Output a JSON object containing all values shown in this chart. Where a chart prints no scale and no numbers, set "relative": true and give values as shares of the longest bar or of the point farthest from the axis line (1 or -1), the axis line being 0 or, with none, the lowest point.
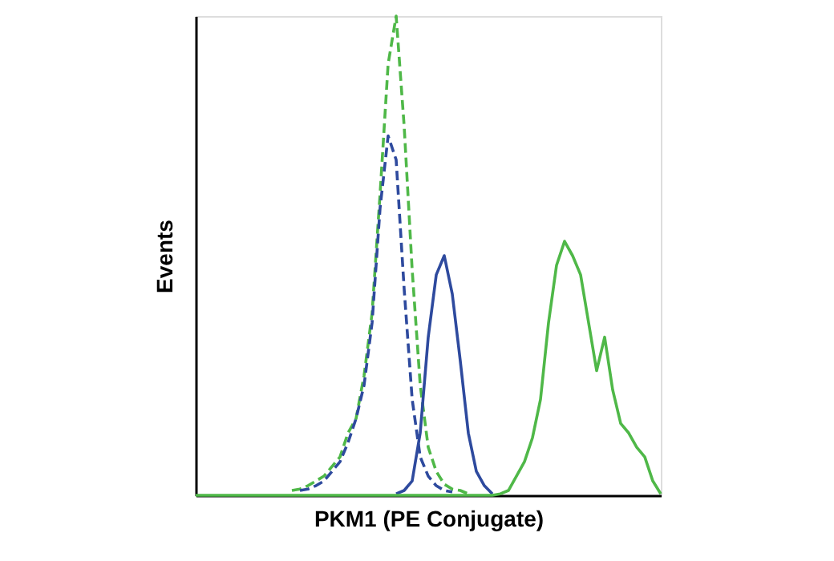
{
  "chart_data": {
    "type": "line",
    "relative": true,
    "xlabel": "PKM1 (PE Conjugate)",
    "ylabel": "Events",
    "tick_labels": false,
    "grid": false,
    "marker": "none",
    "categories": [
      null,
      null,
      null,
      null,
      null,
      null,
      null,
      null,
      null,
      null,
      null,
      null,
      null,
      null,
      null,
      null,
      null,
      null,
      null,
      null,
      null,
      null,
      null,
      null,
      null,
      null,
      null,
      null,
      null,
      null,
      null,
      null,
      null,
      null,
      null,
      null,
      null,
      null,
      null,
      null,
      null,
      null,
      null,
      null,
      null,
      null,
      null,
      null,
      null,
      null,
      null,
      null,
      null,
      null,
      null,
      null,
      null,
      null,
      null
    ],
    "series": [
      {
        "color": "#4fb848",
        "line_style": "dashed",
        "values": [
          null,
          null,
          null,
          null,
          null,
          null,
          null,
          null,
          null,
          null,
          null,
          null,
          0.01,
          0.013,
          0.02,
          0.03,
          0.04,
          0.06,
          0.08,
          0.13,
          0.16,
          0.25,
          0.38,
          0.63,
          0.9,
          1.0,
          0.77,
          0.47,
          0.23,
          0.1,
          0.05,
          0.023,
          0.013,
          0.01,
          0.003,
          null,
          null,
          null,
          null,
          null,
          null,
          null,
          null,
          null,
          null,
          null,
          null,
          null,
          null,
          null,
          null,
          null,
          null,
          null,
          null,
          null,
          null,
          null,
          null
        ]
      },
      {
        "color": "#2e4a9e",
        "line_style": "dashed",
        "values": [
          null,
          null,
          null,
          null,
          null,
          null,
          null,
          null,
          null,
          null,
          null,
          null,
          null,
          0.01,
          0.013,
          0.02,
          0.03,
          0.05,
          0.07,
          0.11,
          0.16,
          0.23,
          0.36,
          0.6,
          0.75,
          0.7,
          0.43,
          0.2,
          0.08,
          0.04,
          0.02,
          0.01,
          0.007,
          null,
          null,
          null,
          null,
          null,
          null,
          null,
          null,
          null,
          null,
          null,
          null,
          null,
          null,
          null,
          null,
          null,
          null,
          null,
          null,
          null,
          null,
          null,
          null,
          null,
          null
        ]
      },
      {
        "color": "#2e4a9e",
        "line_style": "solid",
        "values": [
          null,
          null,
          null,
          null,
          null,
          null,
          null,
          null,
          null,
          null,
          null,
          null,
          null,
          null,
          null,
          null,
          null,
          null,
          null,
          null,
          null,
          null,
          null,
          null,
          null,
          0.003,
          0.01,
          0.03,
          0.13,
          0.33,
          0.46,
          0.5,
          0.42,
          0.28,
          0.13,
          0.05,
          0.02,
          0.003,
          null,
          null,
          null,
          null,
          null,
          null,
          null,
          null,
          null,
          null,
          null,
          null,
          null,
          null,
          null,
          null,
          null,
          null,
          null,
          null,
          null
        ]
      },
      {
        "color": "#4fb848",
        "line_style": "solid",
        "values": [
          0,
          0,
          0,
          0,
          0,
          0,
          0,
          0,
          0,
          0,
          0,
          0,
          0,
          0,
          0,
          0,
          0,
          0,
          0,
          0,
          0,
          0,
          0,
          0,
          0,
          0,
          0,
          0,
          0,
          0,
          0,
          0,
          0,
          0,
          0,
          0,
          0,
          0,
          0.003,
          0.01,
          0.04,
          0.07,
          0.12,
          0.2,
          0.36,
          0.48,
          0.53,
          0.5,
          0.46,
          0.36,
          0.26,
          0.33,
          0.22,
          0.15,
          0.13,
          0.1,
          0.08,
          0.03,
          0.003
        ]
      }
    ]
  }
}
